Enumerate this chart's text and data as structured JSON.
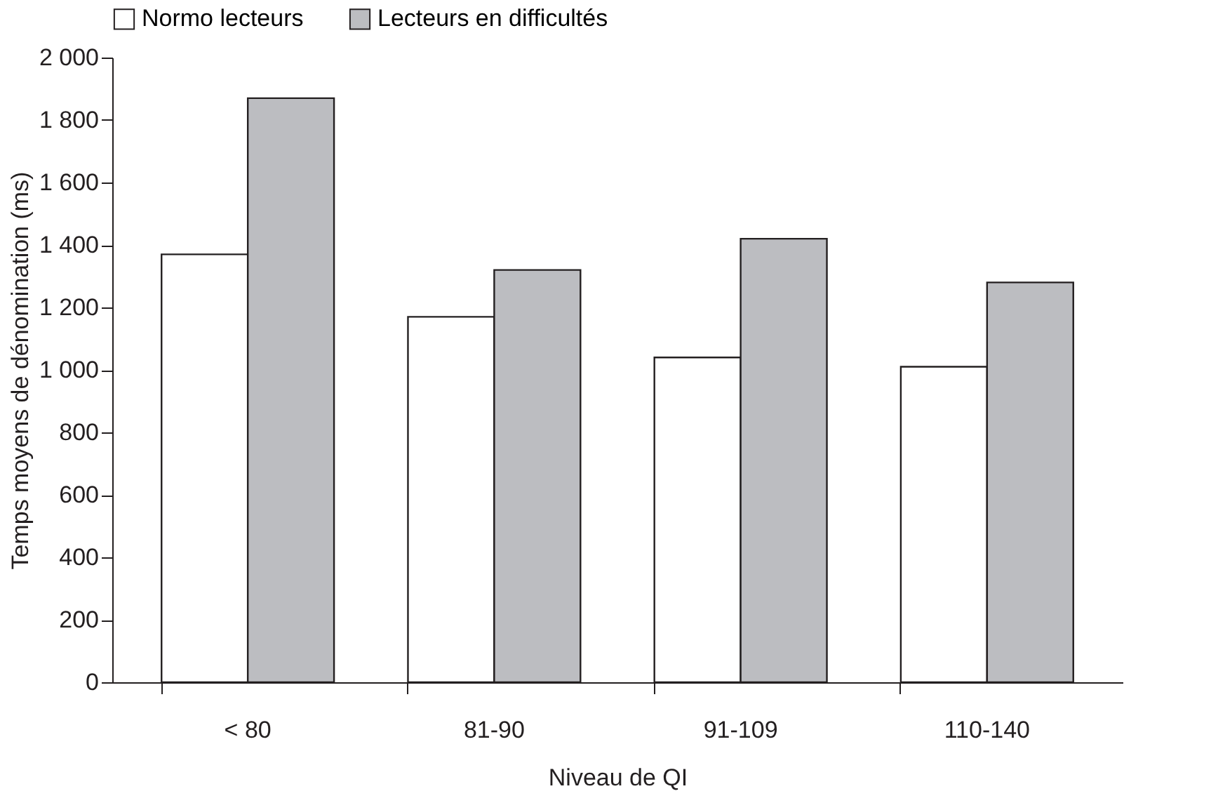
{
  "chart_data": {
    "type": "bar",
    "xlabel": "Niveau de QI",
    "ylabel": "Temps moyens de dénomination (ms)",
    "categories": [
      "< 80",
      "81-90",
      "91-109",
      "110-140"
    ],
    "series": [
      {
        "name": "Normo lecteurs",
        "color": "#ffffff",
        "values": [
          1370,
          1170,
          1040,
          1010
        ]
      },
      {
        "name": "Lecteurs en difficultés",
        "color": "#bcbdc1",
        "values": [
          1870,
          1320,
          1420,
          1280
        ]
      }
    ],
    "ylim": [
      0,
      2000
    ],
    "yticks": [
      0,
      200,
      400,
      600,
      800,
      {
        "value": 1000,
        "label": "1 000"
      },
      {
        "value": 1200,
        "label": "1 200"
      },
      {
        "value": 1400,
        "label": "1 400"
      },
      {
        "value": 1600,
        "label": "1 600"
      },
      {
        "value": 1800,
        "label": "1 800"
      },
      {
        "value": 2000,
        "label": "2 000"
      }
    ],
    "legend": "top",
    "grid": false
  }
}
